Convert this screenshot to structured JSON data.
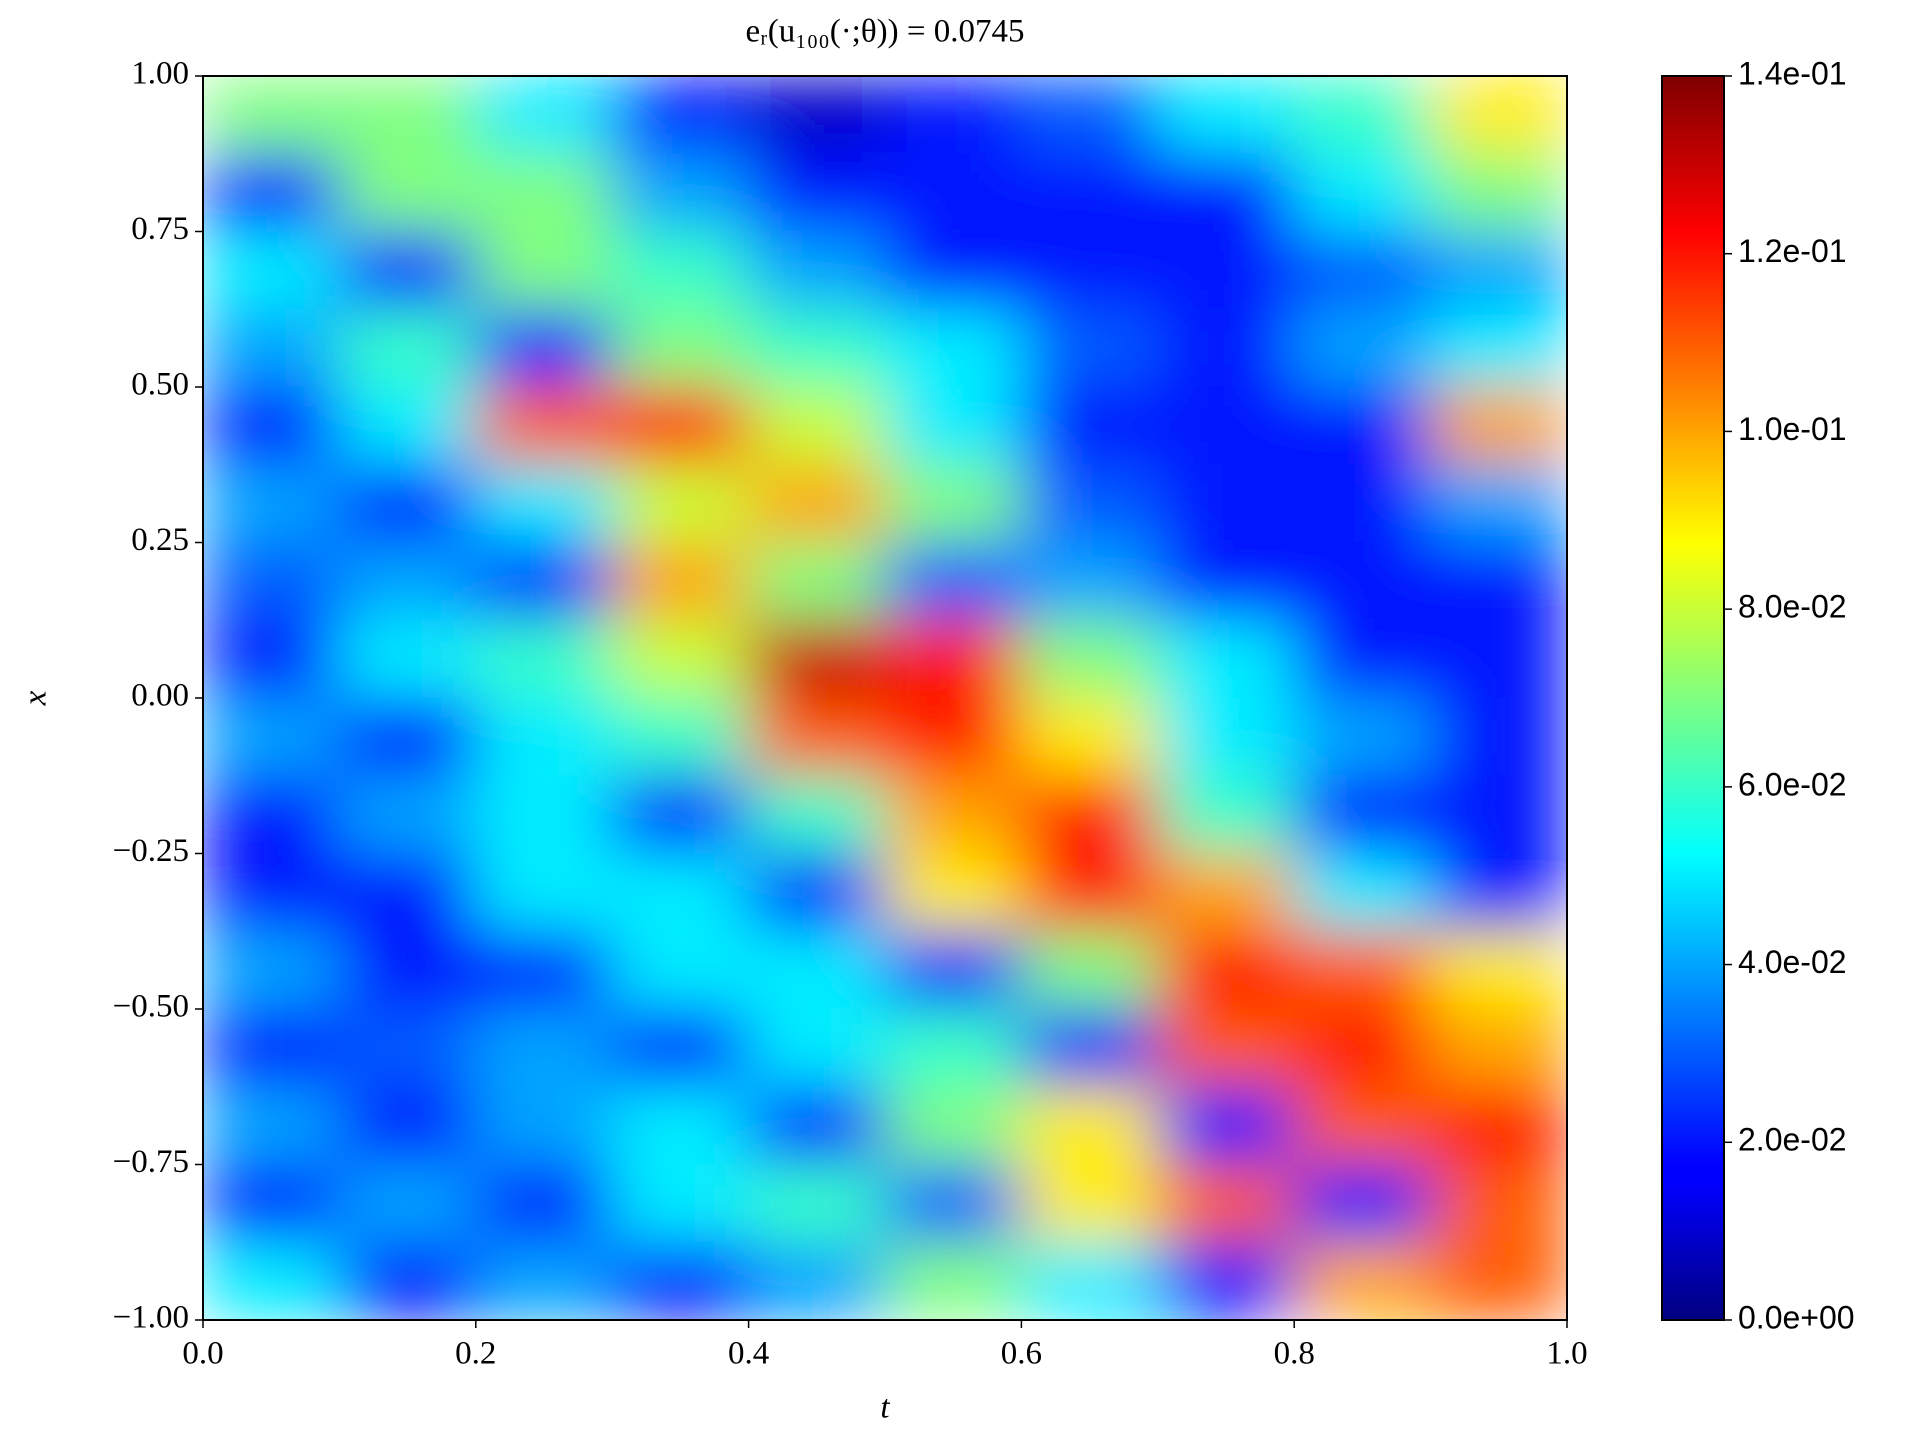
{
  "chart_data": {
    "type": "heatmap",
    "title": "eᵣ(u₁₀₀(·;θ)) = 0.0745",
    "xlabel": "t",
    "ylabel": "x",
    "colormap": "jet",
    "x": [
      0.05,
      0.15,
      0.25,
      0.35,
      0.45,
      0.55,
      0.65,
      0.75,
      0.85,
      0.95
    ],
    "y": [
      0.9375,
      0.8125,
      0.6875,
      0.5625,
      0.4375,
      0.3125,
      0.1875,
      0.0625,
      -0.0625,
      -0.1875,
      -0.3125,
      -0.4375,
      -0.5625,
      -0.6875,
      -0.8125,
      -0.9375
    ],
    "z": [
      [
        0.07,
        0.07,
        0.05,
        0.02,
        0.01,
        0.02,
        0.03,
        0.05,
        0.06,
        0.09
      ],
      [
        0.02,
        0.07,
        0.07,
        0.04,
        0.02,
        0.02,
        0.02,
        0.02,
        0.05,
        0.07
      ],
      [
        0.05,
        0.02,
        0.07,
        0.06,
        0.04,
        0.02,
        0.02,
        0.02,
        0.03,
        0.04
      ],
      [
        0.04,
        0.06,
        0.02,
        0.07,
        0.06,
        0.05,
        0.03,
        0.02,
        0.04,
        0.05
      ],
      [
        0.02,
        0.05,
        0.11,
        0.12,
        0.08,
        0.05,
        0.02,
        0.02,
        0.02,
        0.1
      ],
      [
        0.04,
        0.02,
        0.05,
        0.08,
        0.1,
        0.07,
        0.03,
        0.02,
        0.02,
        0.04
      ],
      [
        0.03,
        0.04,
        0.02,
        0.1,
        0.07,
        0.03,
        0.04,
        0.02,
        0.02,
        0.02
      ],
      [
        0.02,
        0.05,
        0.06,
        0.08,
        0.13,
        0.12,
        0.07,
        0.05,
        0.02,
        0.02
      ],
      [
        0.04,
        0.02,
        0.05,
        0.06,
        0.11,
        0.12,
        0.09,
        0.05,
        0.04,
        0.02
      ],
      [
        0.02,
        0.04,
        0.05,
        0.02,
        0.06,
        0.1,
        0.12,
        0.06,
        0.02,
        0.02
      ],
      [
        0.02,
        0.02,
        0.05,
        0.05,
        0.02,
        0.09,
        0.12,
        0.1,
        0.05,
        0.02
      ],
      [
        0.04,
        0.02,
        0.02,
        0.05,
        0.05,
        0.02,
        0.07,
        0.12,
        0.11,
        0.09
      ],
      [
        0.02,
        0.03,
        0.04,
        0.02,
        0.05,
        0.06,
        0.02,
        0.11,
        0.12,
        0.1
      ],
      [
        0.04,
        0.02,
        0.04,
        0.05,
        0.02,
        0.07,
        0.09,
        0.02,
        0.11,
        0.12
      ],
      [
        0.02,
        0.04,
        0.02,
        0.05,
        0.06,
        0.03,
        0.09,
        0.11,
        0.02,
        0.11
      ],
      [
        0.05,
        0.02,
        0.04,
        0.02,
        0.04,
        0.07,
        0.05,
        0.02,
        0.1,
        0.11
      ]
    ],
    "xlim": [
      0,
      1
    ],
    "ylim": [
      -1,
      1
    ],
    "xticks": [
      {
        "value": 0,
        "label": "0.0"
      },
      0.2,
      0.4,
      0.6,
      0.8,
      {
        "value": 1,
        "label": "1.0"
      }
    ],
    "yticks": [
      {
        "value": -1,
        "label": "−1.00"
      },
      {
        "value": -0.75,
        "label": "−0.75"
      },
      {
        "value": -0.5,
        "label": "−0.50"
      },
      {
        "value": -0.25,
        "label": "−0.25"
      },
      {
        "value": 0,
        "label": "0.00"
      },
      {
        "value": 0.25,
        "label": "0.25"
      },
      {
        "value": 0.5,
        "label": "0.50"
      },
      {
        "value": 0.75,
        "label": "0.75"
      },
      {
        "value": 1,
        "label": "1.00"
      }
    ],
    "clim": [
      0,
      0.14
    ],
    "cticks": [
      {
        "value": 0,
        "label": "0.0e+00"
      },
      {
        "value": 0.02,
        "label": "2.0e-02"
      },
      {
        "value": 0.04,
        "label": "4.0e-02"
      },
      {
        "value": 0.06,
        "label": "6.0e-02"
      },
      {
        "value": 0.08,
        "label": "8.0e-02"
      },
      {
        "value": 0.1,
        "label": "1.0e-01"
      },
      {
        "value": 0.12,
        "label": "1.2e-01"
      },
      {
        "value": 0.14,
        "label": "1.4e-01"
      }
    ]
  }
}
